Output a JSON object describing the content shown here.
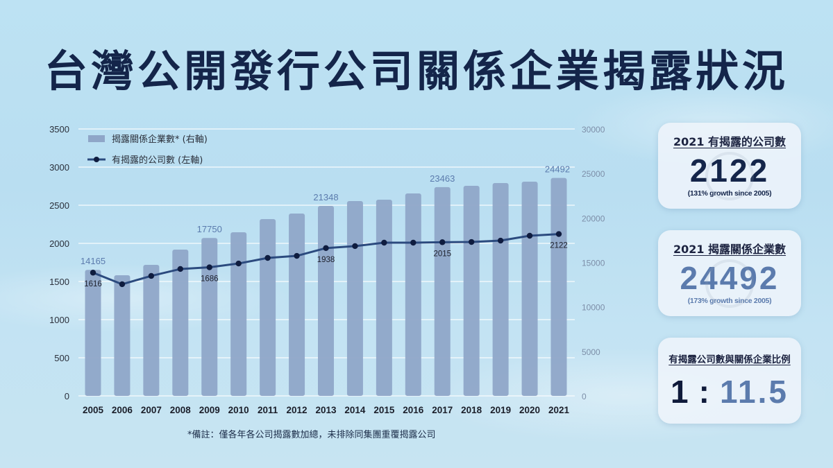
{
  "title": "台灣公開發行公司關係企業揭露狀況",
  "chart_data": {
    "type": "bar",
    "title": "台灣公開發行公司關係企業揭露狀況",
    "categories": [
      "2005",
      "2006",
      "2007",
      "2008",
      "2009",
      "2010",
      "2011",
      "2012",
      "2013",
      "2014",
      "2015",
      "2016",
      "2017",
      "2018",
      "2019",
      "2020",
      "2021"
    ],
    "series": [
      {
        "name": "揭露關係企業數* (右軸)",
        "type": "bar",
        "axis": "right",
        "color": "#8fa6c8",
        "values": [
          14165,
          13560,
          14730,
          16440,
          17750,
          18390,
          19870,
          20490,
          21348,
          21900,
          22050,
          22750,
          23463,
          23610,
          23920,
          24080,
          24492
        ]
      },
      {
        "name": "有揭露的公司數 (左軸)",
        "type": "line",
        "axis": "left",
        "color": "#2b4a7e",
        "values": [
          1616,
          1464,
          1573,
          1664,
          1686,
          1736,
          1809,
          1836,
          1938,
          1964,
          2009,
          2009,
          2015,
          2018,
          2036,
          2100,
          2122
        ]
      }
    ],
    "bar_labels": [
      {
        "index": 0,
        "text": "14165"
      },
      {
        "index": 4,
        "text": "17750"
      },
      {
        "index": 8,
        "text": "21348"
      },
      {
        "index": 12,
        "text": "23463"
      },
      {
        "index": 16,
        "text": "24492"
      }
    ],
    "line_labels": [
      {
        "index": 0,
        "text": "1616"
      },
      {
        "index": 4,
        "text": "1686"
      },
      {
        "index": 8,
        "text": "1938"
      },
      {
        "index": 12,
        "text": "2015"
      },
      {
        "index": 16,
        "text": "2122"
      }
    ],
    "left_axis": {
      "min": 0,
      "max": 3500,
      "ticks": [
        "0",
        "500",
        "1000",
        "1500",
        "2000",
        "2500",
        "3000",
        "3500"
      ]
    },
    "right_axis": {
      "min": 0,
      "max": 30000,
      "ticks": [
        "0",
        "5000",
        "10000",
        "15000",
        "20000",
        "25000",
        "30000"
      ]
    },
    "xlabel": "",
    "ylabel": "",
    "grid": true,
    "legend_position": "top-left (inside)"
  },
  "footnote": "*備註：僅各年各公司揭露數加總，未排除同集團重覆揭露公司",
  "cards": [
    {
      "title": "2021 有揭露的公司數",
      "value": "2122",
      "sub": "(131% growth since 2005)",
      "value_color": "#14254a"
    },
    {
      "title": "2021 揭露關係企業數",
      "value": "24492",
      "sub": "(173% growth since 2005)",
      "value_color": "#5b7bad"
    },
    {
      "title": "有揭露公司數與關係企業比例",
      "ratio_left": "1",
      "ratio_sep": ":",
      "ratio_right": "11.5"
    }
  ]
}
